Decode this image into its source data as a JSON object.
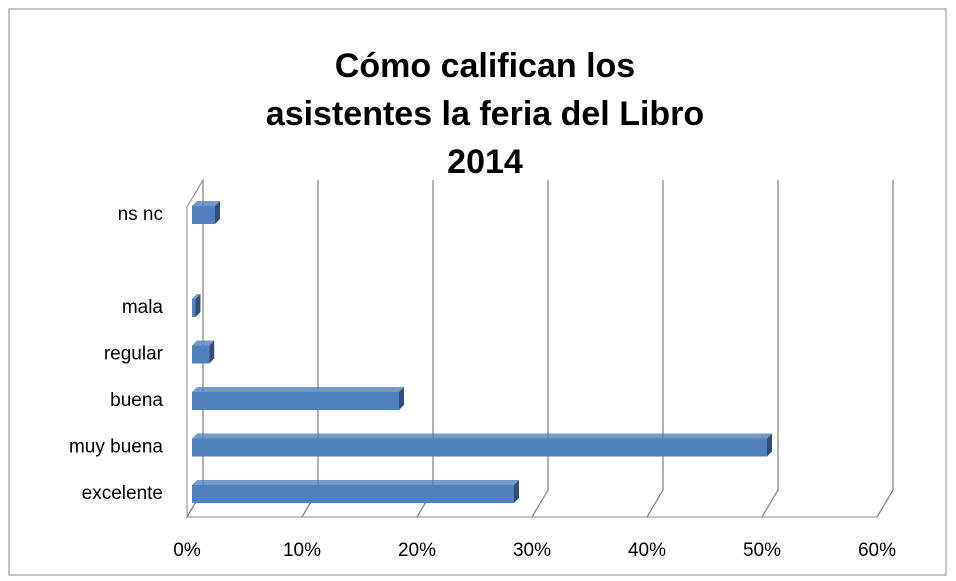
{
  "chart_data": {
    "type": "bar",
    "orientation": "horizontal",
    "title": "Cómo califican los asistentes la feria del Libro 2014",
    "categories": [
      "excelente",
      "muy buena",
      "buena",
      "regular",
      "mala",
      null,
      "ns nc"
    ],
    "values": [
      28,
      50,
      18,
      1.5,
      0.3,
      null,
      2
    ],
    "color": "#4f81bd",
    "xlim": [
      0,
      60
    ],
    "xticks": [
      {
        "value": 0,
        "label": "0%"
      },
      {
        "value": 10,
        "label": "10%"
      },
      {
        "value": 20,
        "label": "20%"
      },
      {
        "value": 30,
        "label": "30%"
      },
      {
        "value": 40,
        "label": "40%"
      },
      {
        "value": 50,
        "label": "50%"
      },
      {
        "value": 60,
        "label": "60%"
      }
    ],
    "grid": true
  }
}
